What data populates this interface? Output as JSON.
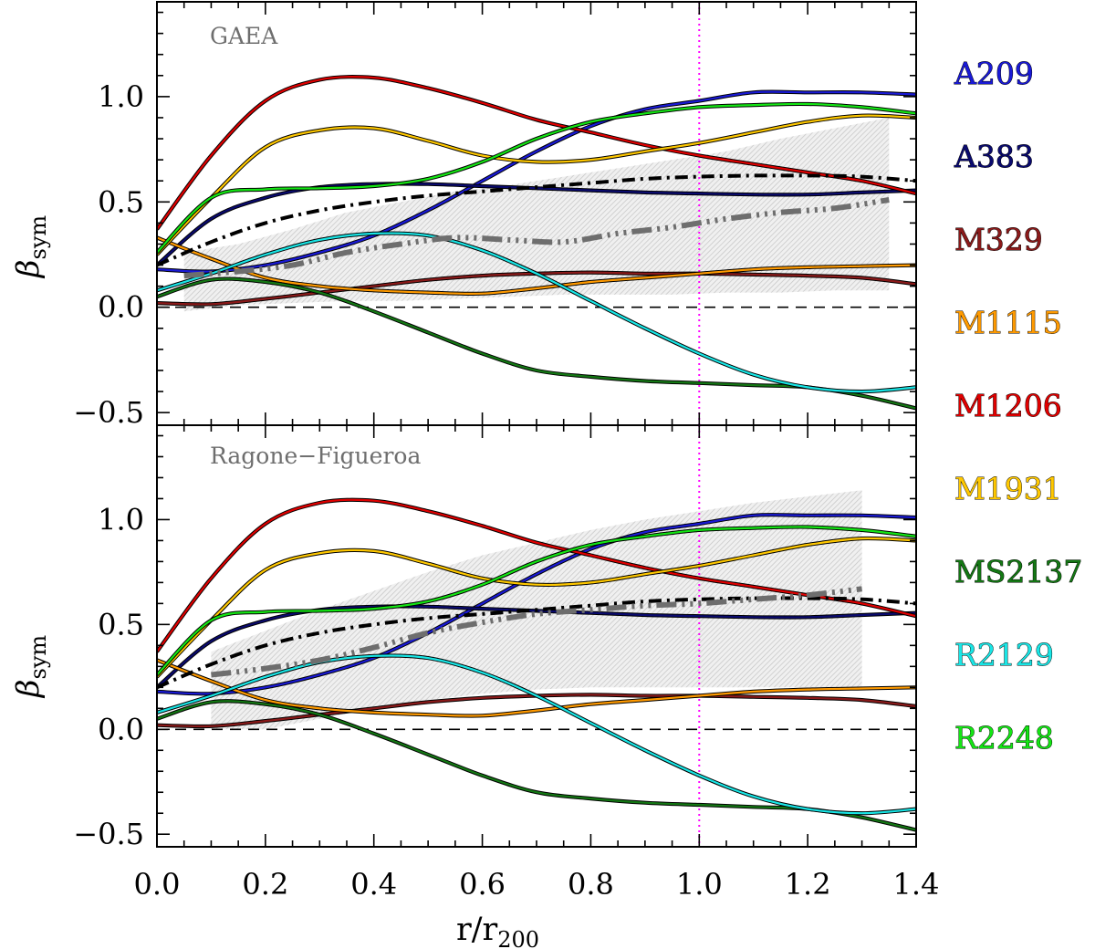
{
  "chart_data": {
    "type": "line",
    "xlabel": {
      "main": "r/r",
      "sub": "200"
    },
    "ylabel": {
      "main": "β",
      "sub": "sym"
    },
    "xlim": [
      0.0,
      1.4
    ],
    "ylim": [
      -0.56,
      1.45
    ],
    "x_ticks": [
      "0.0",
      "0.2",
      "0.4",
      "0.6",
      "0.8",
      "1.0",
      "1.2",
      "1.4"
    ],
    "y_ticks": [
      "−0.5",
      "0.0",
      "0.5",
      "1.0"
    ],
    "x_tick_values": [
      0.0,
      0.2,
      0.4,
      0.6,
      0.8,
      1.0,
      1.2,
      1.4
    ],
    "y_tick_values": [
      -0.5,
      0.0,
      0.5,
      1.0
    ],
    "reference_lines": {
      "horizontal_dashed_y": 0.0,
      "vertical_dotted_x": 1.0,
      "vertical_color": "#ff00ff"
    },
    "shared_x": [
      0.0,
      0.1,
      0.2,
      0.3,
      0.4,
      0.5,
      0.6,
      0.7,
      0.8,
      0.9,
      1.0,
      1.1,
      1.2,
      1.3,
      1.4
    ],
    "series": [
      {
        "name": "A209",
        "color": "#1a1ad6",
        "values": [
          0.18,
          0.17,
          0.2,
          0.26,
          0.34,
          0.46,
          0.6,
          0.74,
          0.86,
          0.94,
          0.98,
          1.02,
          1.02,
          1.02,
          1.01
        ]
      },
      {
        "name": "A383",
        "color": "#0a0a6e",
        "values": [
          0.2,
          0.42,
          0.52,
          0.57,
          0.585,
          0.585,
          0.575,
          0.565,
          0.555,
          0.545,
          0.54,
          0.535,
          0.535,
          0.545,
          0.555
        ]
      },
      {
        "name": "M329",
        "color": "#8b1a1a",
        "values": [
          0.02,
          0.015,
          0.04,
          0.07,
          0.1,
          0.13,
          0.15,
          0.16,
          0.165,
          0.16,
          0.16,
          0.155,
          0.15,
          0.14,
          0.11
        ]
      },
      {
        "name": "M1115",
        "color": "#ff9a00",
        "values": [
          0.33,
          0.23,
          0.14,
          0.1,
          0.08,
          0.07,
          0.065,
          0.09,
          0.12,
          0.14,
          0.16,
          0.18,
          0.19,
          0.195,
          0.2
        ]
      },
      {
        "name": "M1206",
        "color": "#e00000",
        "values": [
          0.37,
          0.72,
          0.98,
          1.08,
          1.09,
          1.04,
          0.97,
          0.89,
          0.83,
          0.77,
          0.72,
          0.68,
          0.64,
          0.6,
          0.54
        ]
      },
      {
        "name": "M1931",
        "color": "#ffc800",
        "values": [
          0.25,
          0.52,
          0.76,
          0.84,
          0.85,
          0.79,
          0.72,
          0.69,
          0.7,
          0.74,
          0.78,
          0.83,
          0.88,
          0.91,
          0.9
        ]
      },
      {
        "name": "MS2137",
        "color": "#147814",
        "values": [
          0.05,
          0.13,
          0.12,
          0.07,
          -0.02,
          -0.12,
          -0.22,
          -0.3,
          -0.33,
          -0.35,
          -0.36,
          -0.37,
          -0.38,
          -0.42,
          -0.48
        ]
      },
      {
        "name": "R2129",
        "color": "#19e6e6",
        "values": [
          0.08,
          0.16,
          0.25,
          0.32,
          0.35,
          0.34,
          0.27,
          0.16,
          0.03,
          -0.1,
          -0.22,
          -0.32,
          -0.38,
          -0.4,
          -0.38
        ]
      },
      {
        "name": "R2248",
        "color": "#14e614",
        "values": [
          0.26,
          0.52,
          0.56,
          0.565,
          0.575,
          0.61,
          0.69,
          0.8,
          0.88,
          0.92,
          0.95,
          0.96,
          0.965,
          0.95,
          0.92
        ]
      }
    ],
    "panels": [
      {
        "title": "GAEA",
        "black_dashdot": {
          "x": [
            0.0,
            0.1,
            0.2,
            0.3,
            0.4,
            0.5,
            0.6,
            0.7,
            0.8,
            0.9,
            1.0,
            1.1,
            1.2,
            1.3,
            1.4
          ],
          "y": [
            0.2,
            0.31,
            0.4,
            0.46,
            0.5,
            0.53,
            0.55,
            0.57,
            0.59,
            0.61,
            0.62,
            0.625,
            0.625,
            0.62,
            0.6
          ]
        },
        "gray_dashdotdot": {
          "x": [
            0.05,
            0.15,
            0.25,
            0.35,
            0.45,
            0.55,
            0.65,
            0.75,
            0.85,
            0.95,
            1.05,
            1.15,
            1.25,
            1.35
          ],
          "y": [
            0.15,
            0.17,
            0.2,
            0.26,
            0.3,
            0.33,
            0.32,
            0.31,
            0.35,
            0.38,
            0.42,
            0.45,
            0.47,
            0.51
          ]
        },
        "band": {
          "x": [
            0.05,
            0.15,
            0.25,
            0.35,
            0.45,
            0.55,
            0.65,
            0.75,
            0.85,
            0.95,
            1.05,
            1.15,
            1.25,
            1.35
          ],
          "upper": [
            0.26,
            0.3,
            0.37,
            0.45,
            0.5,
            0.55,
            0.58,
            0.62,
            0.66,
            0.7,
            0.74,
            0.8,
            0.85,
            0.9
          ],
          "lower": [
            -0.02,
            0.01,
            0.02,
            0.03,
            0.03,
            0.04,
            0.05,
            0.06,
            0.06,
            0.06,
            0.07,
            0.07,
            0.08,
            0.08
          ]
        }
      },
      {
        "title": "Ragone−Figueroa",
        "black_dashdot": {
          "x": [
            0.0,
            0.1,
            0.2,
            0.3,
            0.4,
            0.5,
            0.6,
            0.7,
            0.8,
            0.9,
            1.0,
            1.1,
            1.2,
            1.3,
            1.4
          ],
          "y": [
            0.2,
            0.31,
            0.4,
            0.46,
            0.5,
            0.53,
            0.55,
            0.57,
            0.59,
            0.61,
            0.62,
            0.625,
            0.625,
            0.62,
            0.6
          ]
        },
        "gray_dashdotdot": {
          "x": [
            0.1,
            0.2,
            0.3,
            0.4,
            0.5,
            0.6,
            0.7,
            0.8,
            0.9,
            1.0,
            1.1,
            1.2,
            1.3
          ],
          "y": [
            0.26,
            0.29,
            0.33,
            0.39,
            0.46,
            0.51,
            0.55,
            0.57,
            0.59,
            0.6,
            0.62,
            0.64,
            0.67
          ]
        },
        "band": {
          "x": [
            0.1,
            0.2,
            0.3,
            0.4,
            0.5,
            0.6,
            0.7,
            0.8,
            0.9,
            1.0,
            1.1,
            1.2,
            1.3
          ],
          "upper": [
            0.37,
            0.47,
            0.57,
            0.66,
            0.75,
            0.83,
            0.89,
            0.95,
            1.0,
            1.04,
            1.08,
            1.11,
            1.14
          ],
          "lower": [
            0.0,
            0.0,
            0.05,
            0.1,
            0.14,
            0.17,
            0.19,
            0.2,
            0.2,
            0.2,
            0.2,
            0.2,
            0.2
          ]
        }
      }
    ]
  }
}
